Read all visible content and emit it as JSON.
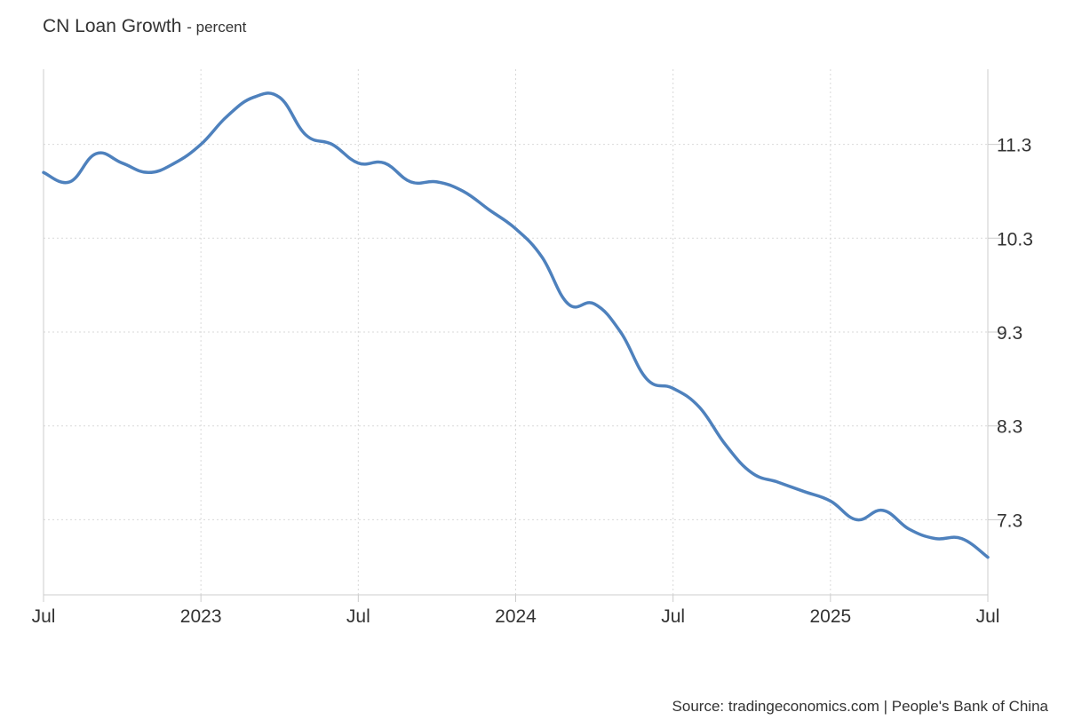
{
  "title": "CN Loan Growth",
  "unit": "- percent",
  "source": "Source: tradingeconomics.com | People's Bank of China",
  "colors": {
    "line": "#4e81bd",
    "grid": "#d9d9d9",
    "axis": "#cccccc",
    "text": "#333333"
  },
  "chart_data": {
    "type": "line",
    "title": "CN Loan Growth",
    "ylabel": "percent",
    "xlabel": "",
    "x_tick_labels": [
      "Jul",
      "2023",
      "Jul",
      "2024",
      "Jul",
      "2025",
      "Jul"
    ],
    "x_tick_dates": [
      "2022-07",
      "2023-01",
      "2023-07",
      "2024-01",
      "2024-07",
      "2025-01",
      "2025-07"
    ],
    "y_ticks": [
      7.3,
      8.3,
      9.3,
      10.3,
      11.3
    ],
    "ylim": [
      6.5,
      12.1
    ],
    "grid": true,
    "y_axis_position": "right",
    "series": [
      {
        "x": [
          "2022-07",
          "2022-08",
          "2022-09",
          "2022-10",
          "2022-11",
          "2022-12",
          "2023-01",
          "2023-02",
          "2023-03",
          "2023-04",
          "2023-05",
          "2023-06",
          "2023-07",
          "2023-08",
          "2023-09",
          "2023-10",
          "2023-11",
          "2023-12",
          "2024-01",
          "2024-02",
          "2024-03",
          "2024-04",
          "2024-05",
          "2024-06",
          "2024-07",
          "2024-08",
          "2024-09",
          "2024-10",
          "2024-11",
          "2024-12",
          "2025-01",
          "2025-02",
          "2025-03",
          "2025-04",
          "2025-05",
          "2025-06",
          "2025-07"
        ],
        "values": [
          11.0,
          10.9,
          11.2,
          11.1,
          11.0,
          11.1,
          11.3,
          11.6,
          11.8,
          11.8,
          11.4,
          11.3,
          11.1,
          11.1,
          10.9,
          10.9,
          10.8,
          10.6,
          10.4,
          10.1,
          9.6,
          9.6,
          9.3,
          8.8,
          8.7,
          8.5,
          8.1,
          7.8,
          7.7,
          7.6,
          7.5,
          7.3,
          7.4,
          7.2,
          7.1,
          7.1,
          6.9
        ]
      }
    ]
  }
}
